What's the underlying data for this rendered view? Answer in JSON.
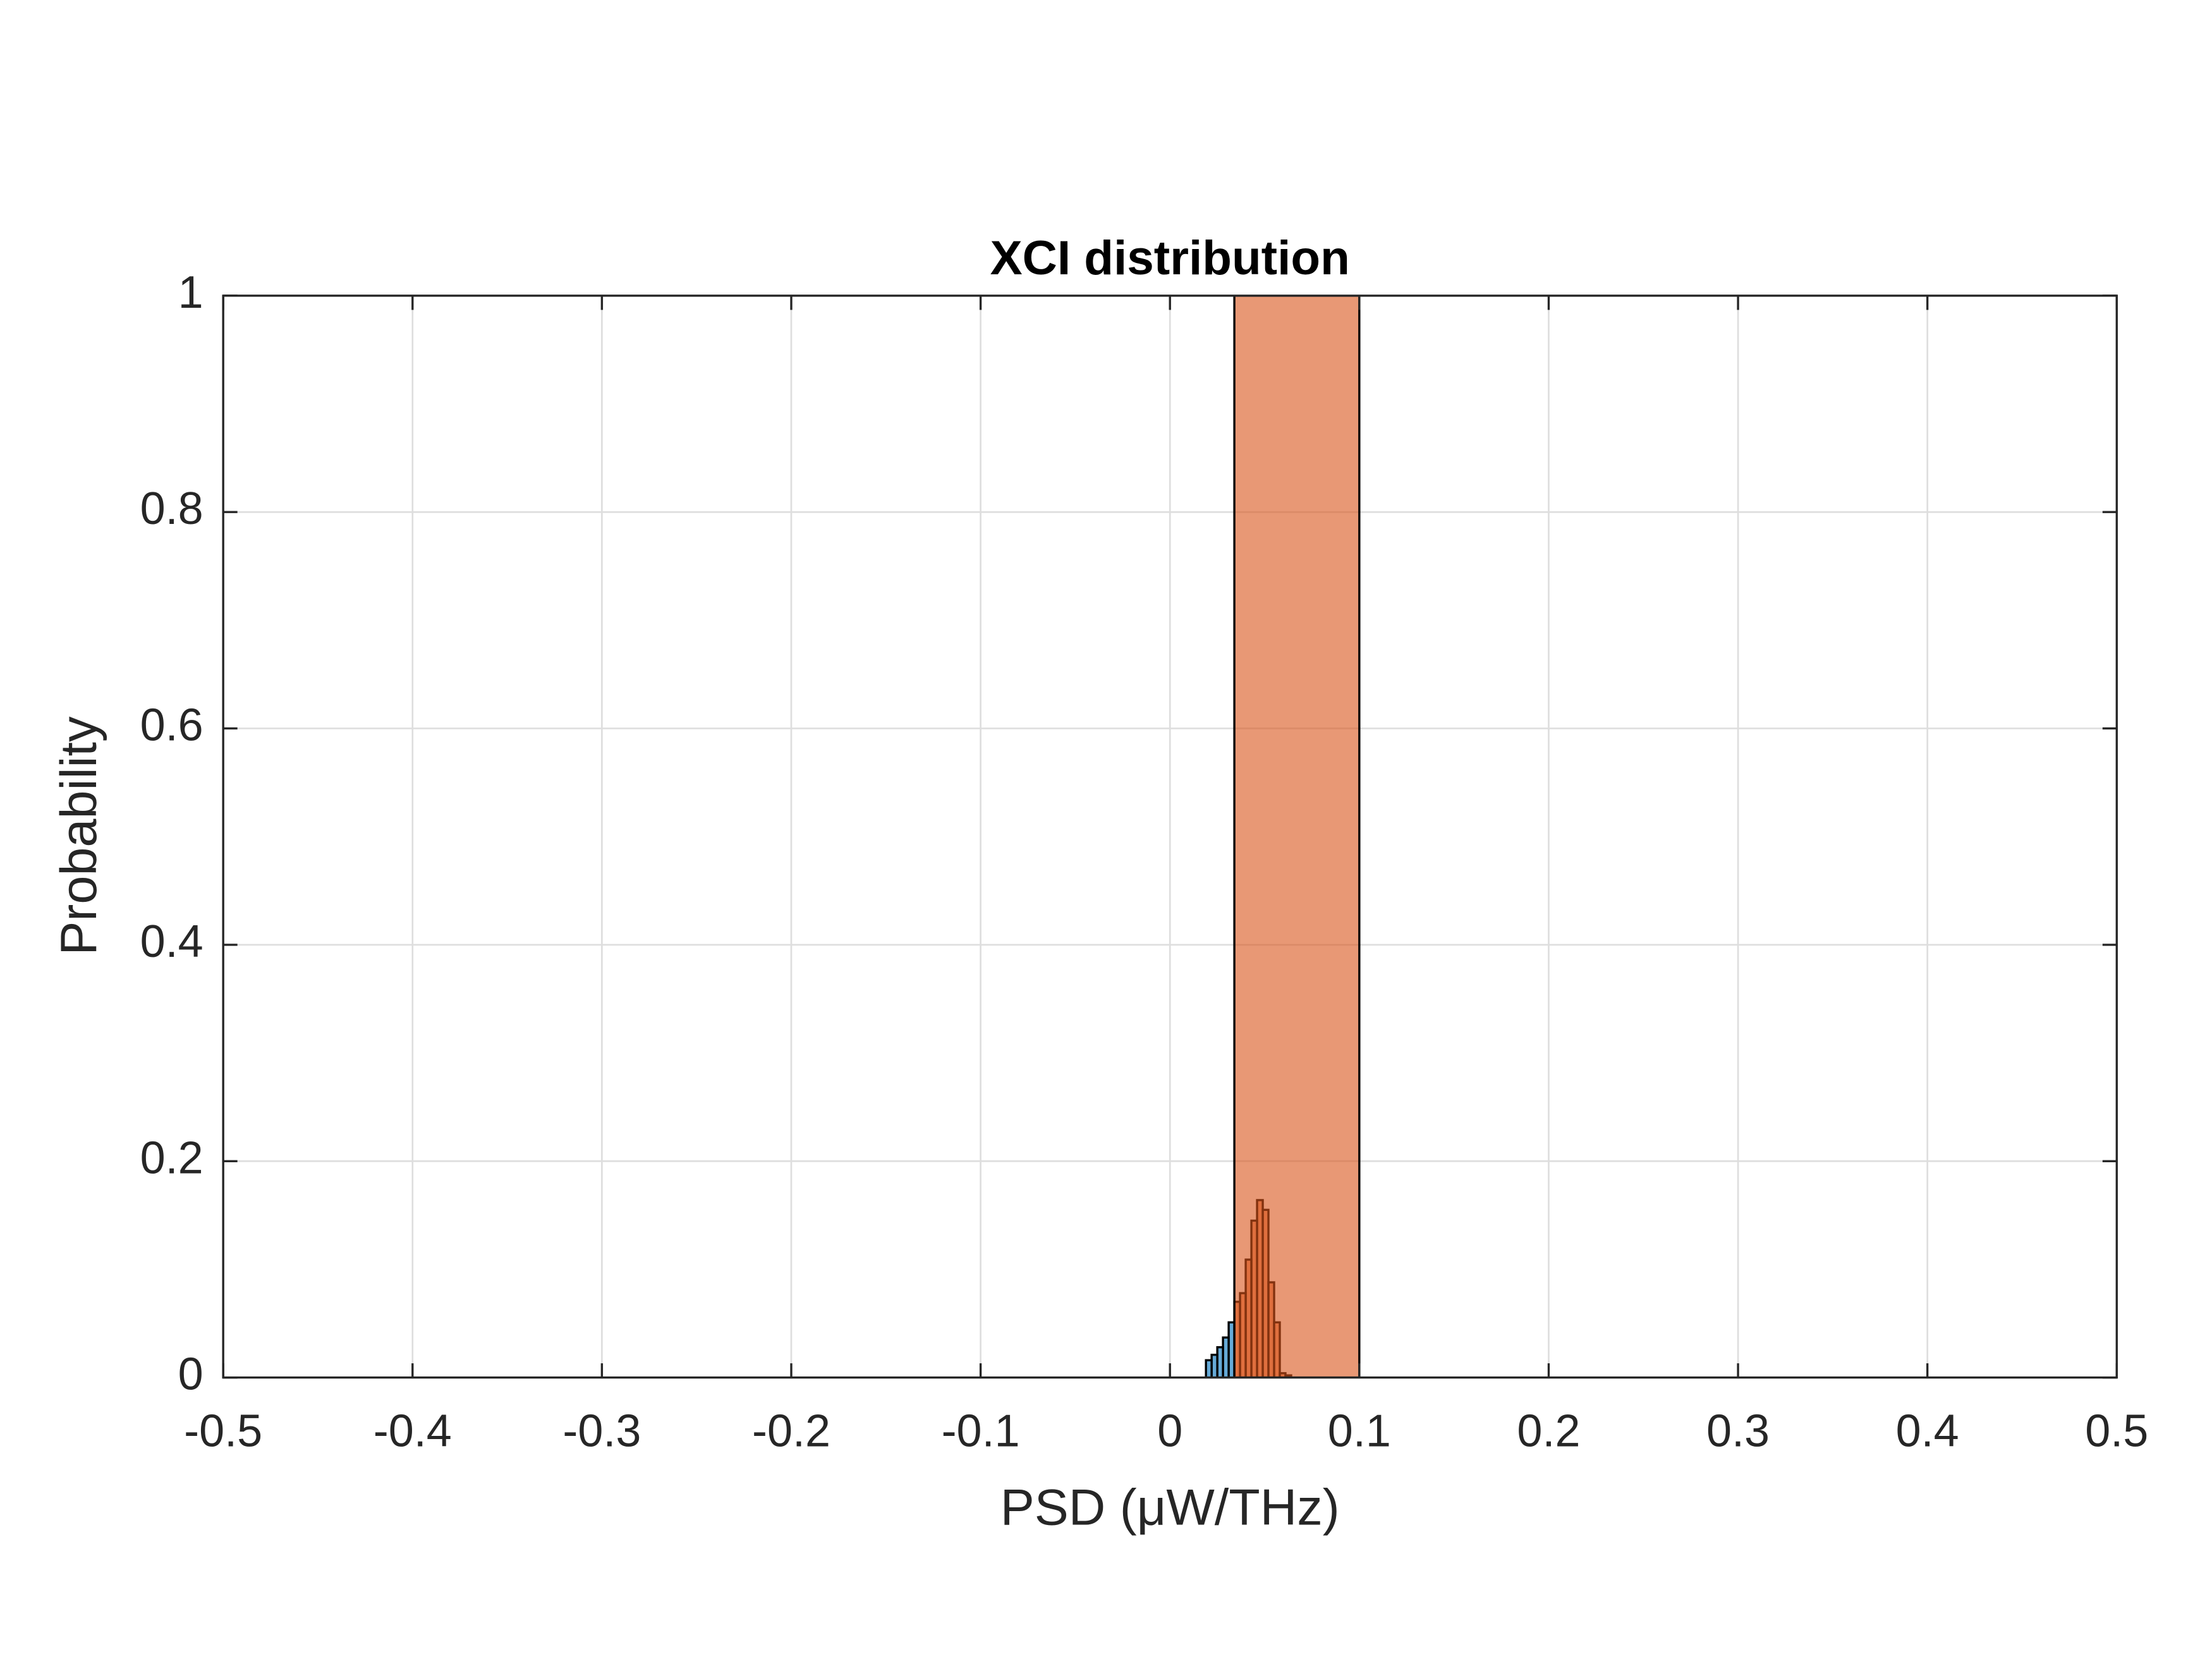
{
  "chart_data": {
    "type": "histogram",
    "title": "XCI distribution",
    "xlabel": "PSD (μW/THz)",
    "ylabel": "Probability",
    "xlim": [
      -0.5,
      0.5
    ],
    "ylim": [
      0,
      1
    ],
    "xticks": [
      -0.5,
      -0.4,
      -0.3,
      -0.2,
      -0.1,
      0,
      0.1,
      0.2,
      0.3,
      0.4,
      0.5
    ],
    "yticks": [
      0,
      0.2,
      0.4,
      0.6,
      0.8,
      1
    ],
    "grid": true,
    "series": [
      {
        "color": "#0072bd",
        "bins": [
          0.019,
          0.022,
          0.025,
          0.028,
          0.031,
          0.034
        ],
        "values": [
          0.016,
          0.021,
          0.028,
          0.037,
          0.051
        ]
      },
      {
        "color": "#d95319",
        "bins": [
          0.034,
          0.037,
          0.04,
          0.043,
          0.046,
          0.049,
          0.052,
          0.055,
          0.058,
          0.061,
          0.064
        ],
        "values": [
          0.07,
          0.078,
          0.109,
          0.145,
          0.164,
          0.155,
          0.088,
          0.051,
          0.004,
          0.002
        ]
      },
      {
        "color": "#d95319",
        "bins": [
          0.034,
          0.1
        ],
        "values": [
          1
        ]
      }
    ]
  }
}
